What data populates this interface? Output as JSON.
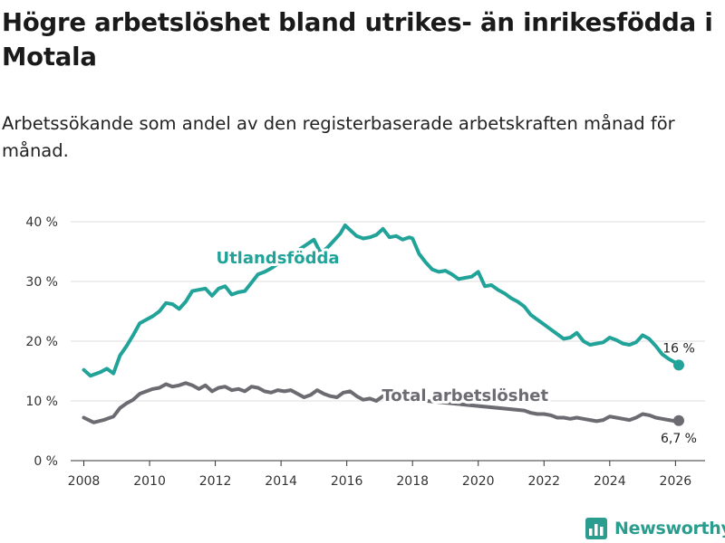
{
  "title": "Högre arbetslöshet bland utrikes- än inrikesfödda i Motala",
  "subtitle": "Arbetssökande som andel av den registerbaserade arbetskraften månad för månad.",
  "brand": {
    "name": "Newsworthy",
    "icon": "newsworthy-logo-icon"
  },
  "colors": {
    "foreign": "#21a399",
    "total": "#6d6b72",
    "grid": "#dcdcdc",
    "axis": "#333333"
  },
  "chart_data": {
    "type": "line",
    "title": "Högre arbetslöshet bland utrikes- än inrikesfödda i Motala",
    "xlabel": "",
    "ylabel": "",
    "xlim": [
      2007.6,
      2026.9
    ],
    "ylim": [
      0,
      40
    ],
    "x_ticks": [
      2008,
      2010,
      2012,
      2014,
      2016,
      2018,
      2020,
      2022,
      2024,
      2026
    ],
    "x_tick_labels": [
      "2008",
      "2010",
      "2012",
      "2014",
      "2016",
      "2018",
      "2020",
      "2022",
      "2024",
      "2026"
    ],
    "y_ticks": [
      0,
      10,
      20,
      30,
      40
    ],
    "y_tick_labels": [
      "0 %",
      "10 %",
      "20 %",
      "30 %",
      "40 %"
    ],
    "grid": true,
    "series": [
      {
        "name": "Utlandsfödda",
        "label": "Utlandsfödda",
        "end_label": "16 %",
        "x": [
          2008.0,
          2008.2,
          2008.5,
          2008.7,
          2008.9,
          2009.1,
          2009.3,
          2009.5,
          2009.7,
          2009.9,
          2010.1,
          2010.3,
          2010.5,
          2010.7,
          2010.9,
          2011.1,
          2011.3,
          2011.5,
          2011.7,
          2011.9,
          2012.1,
          2012.3,
          2012.5,
          2012.7,
          2012.9,
          2013.1,
          2013.3,
          2013.5,
          2013.7,
          2015.0,
          2015.2,
          2015.4,
          2015.6,
          2015.8,
          2015.95,
          2016.1,
          2016.3,
          2016.5,
          2016.7,
          2016.9,
          2017.1,
          2017.3,
          2017.5,
          2017.7,
          2017.9,
          2018.0,
          2018.2,
          2018.4,
          2018.6,
          2018.8,
          2019.0,
          2019.2,
          2019.4,
          2019.6,
          2019.8,
          2020.0,
          2020.2,
          2020.4,
          2020.6,
          2020.8,
          2021.0,
          2021.2,
          2021.4,
          2021.6,
          2021.8,
          2022.0,
          2022.2,
          2022.4,
          2022.6,
          2022.8,
          2023.0,
          2023.2,
          2023.4,
          2023.6,
          2023.8,
          2024.0,
          2024.2,
          2024.4,
          2024.6,
          2024.8,
          2025.0,
          2025.2,
          2025.4,
          2025.6,
          2025.8,
          2026.0,
          2026.1
        ],
        "values": [
          15.2,
          14.2,
          14.8,
          15.4,
          14.6,
          17.6,
          19.2,
          21.0,
          23.0,
          23.6,
          24.2,
          25.0,
          26.4,
          26.2,
          25.4,
          26.6,
          28.4,
          28.6,
          28.8,
          27.6,
          28.8,
          29.2,
          27.8,
          28.2,
          28.4,
          29.8,
          31.2,
          31.6,
          32.2,
          37.0,
          34.8,
          35.6,
          36.8,
          38.0,
          39.4,
          38.6,
          37.6,
          37.2,
          37.4,
          37.8,
          38.8,
          37.4,
          37.6,
          37.0,
          37.4,
          37.2,
          34.6,
          33.2,
          32.0,
          31.6,
          31.8,
          31.2,
          30.4,
          30.6,
          30.8,
          31.6,
          29.2,
          29.4,
          28.6,
          28.0,
          27.2,
          26.6,
          25.8,
          24.4,
          23.6,
          22.8,
          22.0,
          21.2,
          20.4,
          20.6,
          21.4,
          20.0,
          19.4,
          19.6,
          19.8,
          20.6,
          20.2,
          19.6,
          19.4,
          19.8,
          21.0,
          20.4,
          19.2,
          17.8,
          17.0,
          16.4,
          16.0
        ]
      },
      {
        "name": "Total arbetslöshet",
        "label": "Total arbetslöshet",
        "end_label": "6,7 %",
        "x": [
          2008.0,
          2008.3,
          2008.6,
          2008.9,
          2009.1,
          2009.3,
          2009.5,
          2009.7,
          2009.9,
          2010.1,
          2010.3,
          2010.5,
          2010.7,
          2010.9,
          2011.1,
          2011.3,
          2011.5,
          2011.7,
          2011.9,
          2012.1,
          2012.3,
          2012.5,
          2012.7,
          2012.9,
          2013.1,
          2013.3,
          2013.5,
          2013.7,
          2013.9,
          2014.1,
          2014.3,
          2014.5,
          2014.7,
          2014.9,
          2015.1,
          2015.3,
          2015.5,
          2015.7,
          2015.9,
          2016.1,
          2016.3,
          2016.5,
          2016.7,
          2016.9,
          2017.1,
          2017.3,
          2021.4,
          2021.6,
          2021.8,
          2022.0,
          2022.2,
          2022.4,
          2022.6,
          2022.8,
          2023.0,
          2023.2,
          2023.4,
          2023.6,
          2023.8,
          2024.0,
          2024.2,
          2024.4,
          2024.6,
          2024.8,
          2025.0,
          2025.2,
          2025.4,
          2025.6,
          2025.8,
          2026.0,
          2026.1
        ],
        "values": [
          7.2,
          6.4,
          6.8,
          7.4,
          8.8,
          9.6,
          10.2,
          11.2,
          11.6,
          12.0,
          12.2,
          12.8,
          12.4,
          12.6,
          13.0,
          12.6,
          12.0,
          12.6,
          11.6,
          12.2,
          12.4,
          11.8,
          12.0,
          11.6,
          12.4,
          12.2,
          11.6,
          11.4,
          11.8,
          11.6,
          11.8,
          11.2,
          10.6,
          11.0,
          11.8,
          11.2,
          10.8,
          10.6,
          11.4,
          11.6,
          10.8,
          10.2,
          10.4,
          10.0,
          10.8,
          10.6,
          8.4,
          8.0,
          7.8,
          7.8,
          7.6,
          7.2,
          7.2,
          7.0,
          7.2,
          7.0,
          6.8,
          6.6,
          6.8,
          7.4,
          7.2,
          7.0,
          6.8,
          7.2,
          7.8,
          7.6,
          7.2,
          7.0,
          6.8,
          6.6,
          6.7
        ]
      }
    ]
  }
}
